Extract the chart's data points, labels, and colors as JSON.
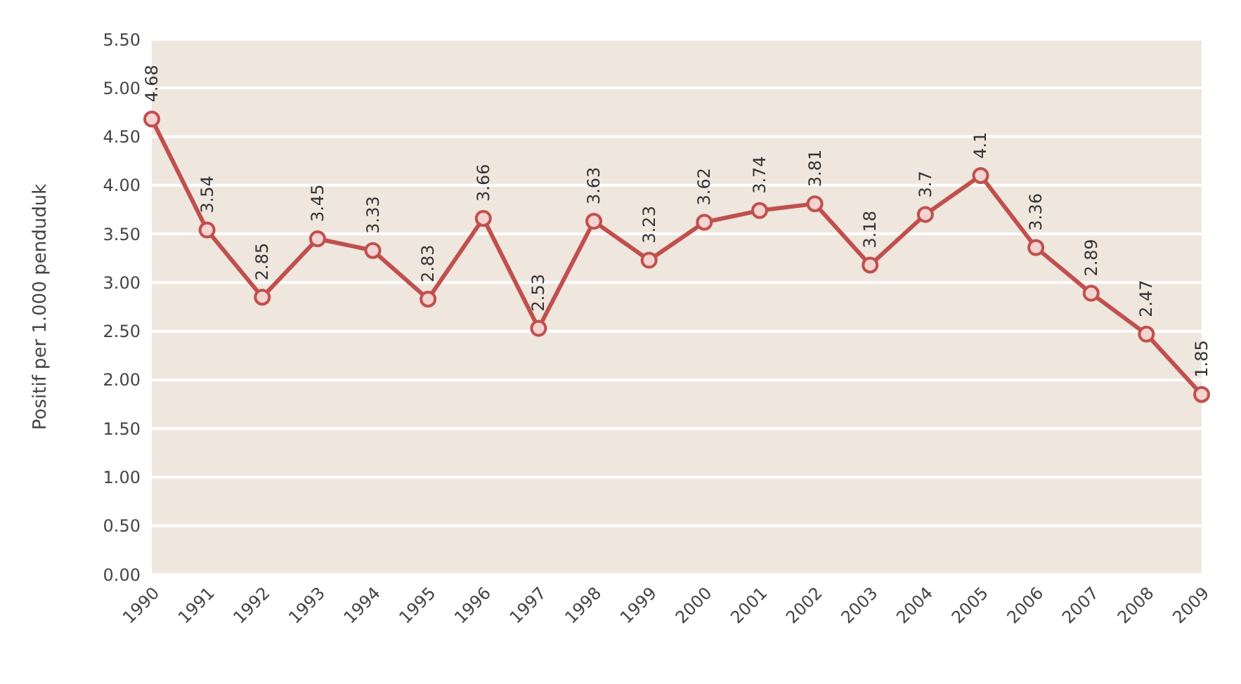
{
  "chart_data": {
    "type": "line",
    "ylabel": "Positif per 1.000 penduduk",
    "categories": [
      "1990",
      "1991",
      "1992",
      "1993",
      "1994",
      "1995",
      "1996",
      "1997",
      "1998",
      "1999",
      "2000",
      "2001",
      "2002",
      "2003",
      "2004",
      "2005",
      "2006",
      "2007",
      "2008",
      "2009"
    ],
    "series": [
      {
        "color": "#c0504d",
        "values": [
          4.68,
          3.54,
          2.85,
          3.45,
          3.33,
          2.83,
          3.66,
          2.53,
          3.63,
          3.23,
          3.62,
          3.74,
          3.81,
          3.18,
          3.7,
          4.1,
          3.36,
          2.89,
          2.47,
          1.85
        ]
      }
    ],
    "ylim": [
      0,
      5.5
    ],
    "yticks": [
      {
        "value": 0,
        "label": "0.00"
      },
      {
        "value": 0.5,
        "label": "0.50"
      },
      {
        "value": 1,
        "label": "1.00"
      },
      {
        "value": 1.5,
        "label": "1.50"
      },
      {
        "value": 2,
        "label": "2.00"
      },
      {
        "value": 2.5,
        "label": "2.50"
      },
      {
        "value": 3,
        "label": "3.00"
      },
      {
        "value": 3.5,
        "label": "3.50"
      },
      {
        "value": 4,
        "label": "4.00"
      },
      {
        "value": 4.5,
        "label": "4.50"
      },
      {
        "value": 5,
        "label": "5.00"
      },
      {
        "value": 5.5,
        "label": "5.50"
      }
    ],
    "grid": "y",
    "marker": "circle",
    "data_labels": true
  }
}
